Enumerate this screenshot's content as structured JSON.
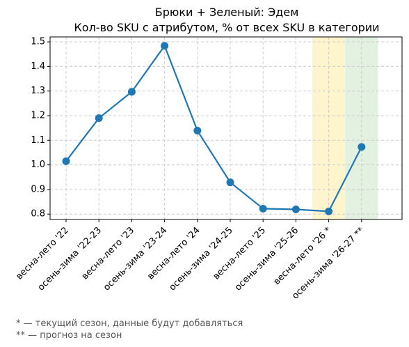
{
  "chart_data": {
    "type": "line",
    "title": "Брюки + Зеленый: Эдем",
    "subtitle": "Кол-во SKU с атрибутом, % от всех SKU в категории",
    "xlabel": "",
    "ylabel": "",
    "categories": [
      "весна-лето '22",
      "осень-зима '22-23",
      "весна-лето '23",
      "осень-зима '23-24",
      "весна-лето '24",
      "осень-зима '24-25",
      "весна-лето '25",
      "осень-зима '25-26",
      "весна-лето '26 *",
      "осень-зима '26-27 **"
    ],
    "series": [
      {
        "values": [
          1.015,
          1.19,
          1.297,
          1.484,
          1.139,
          0.929,
          0.822,
          0.819,
          0.811,
          1.073
        ]
      }
    ],
    "ylim": [
      0.778,
      1.52
    ],
    "yticks": [
      0.8,
      0.9,
      1.0,
      1.1,
      1.2,
      1.3,
      1.4,
      1.5
    ],
    "ytick_labels": [
      "0.8",
      "0.9",
      "1.0",
      "1.1",
      "1.2",
      "1.3",
      "1.4",
      "1.5"
    ],
    "grid": true,
    "highlight_current_index": 8,
    "highlight_forecast_index": 9,
    "colors": {
      "line": "#1f77b4",
      "current_band": "#fff5cc",
      "forecast_band": "#e3f1e1",
      "grid": "#cccccc"
    }
  },
  "footnotes": {
    "current": "* — текущий сезон, данные будут добавляться",
    "forecast": "** — прогноз на сезон"
  }
}
